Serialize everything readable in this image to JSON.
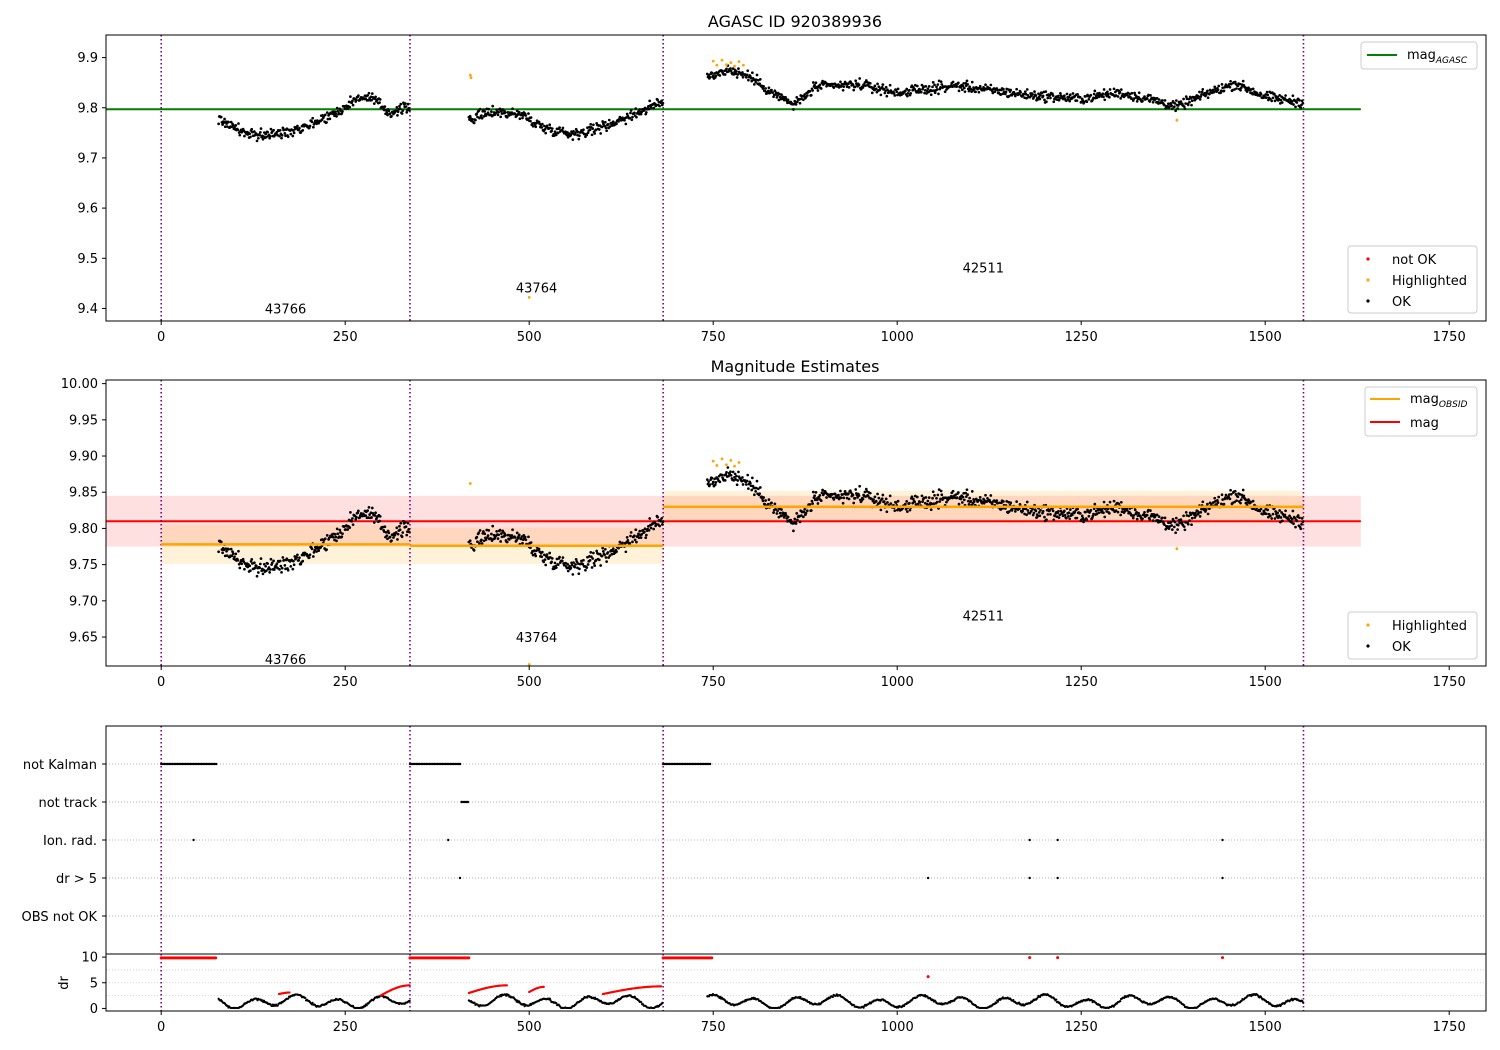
{
  "chart_data": [
    {
      "id": "agasc",
      "type": "scatter",
      "title": "AGASC ID 920389936",
      "xlim": [
        -75,
        1800
      ],
      "ylim": [
        9.375,
        9.945
      ],
      "xticks": [
        0,
        250,
        500,
        750,
        1000,
        1250,
        1500,
        1750
      ],
      "yticks": [
        9.4,
        9.5,
        9.6,
        9.7,
        9.8,
        9.9
      ],
      "ytick_decimals": 1,
      "obs_boundaries": [
        0,
        338,
        682,
        1552
      ],
      "obs_labels": [
        {
          "text": "43766",
          "x": 169,
          "y": 9.4
        },
        {
          "text": "43764",
          "x": 510,
          "y": 9.442
        },
        {
          "text": "42511",
          "x": 1117,
          "y": 9.482
        }
      ],
      "hline": {
        "y": 9.797,
        "x": [
          -75,
          1630
        ],
        "color": "#008000",
        "name": "mag"
      },
      "hline_sub": "AGASC",
      "segments": [
        {
          "x0": 78,
          "x1": 338,
          "anchors": [
            [
              78,
              9.778
            ],
            [
              120,
              9.745
            ],
            [
              160,
              9.748
            ],
            [
              200,
              9.766
            ],
            [
              240,
              9.792
            ],
            [
              270,
              9.822
            ],
            [
              290,
              9.815
            ],
            [
              310,
              9.79
            ],
            [
              338,
              9.802
            ]
          ],
          "noise": 0.012
        },
        {
          "x0": 418,
          "x1": 682,
          "anchors": [
            [
              418,
              9.776
            ],
            [
              450,
              9.793
            ],
            [
              490,
              9.786
            ],
            [
              520,
              9.76
            ],
            [
              560,
              9.748
            ],
            [
              600,
              9.762
            ],
            [
              640,
              9.786
            ],
            [
              682,
              9.812
            ]
          ],
          "noise": 0.012
        },
        {
          "x0": 742,
          "x1": 1552,
          "anchors": [
            [
              742,
              9.862
            ],
            [
              770,
              9.876
            ],
            [
              800,
              9.862
            ],
            [
              830,
              9.83
            ],
            [
              860,
              9.806
            ],
            [
              890,
              9.842
            ],
            [
              950,
              9.846
            ],
            [
              1000,
              9.83
            ],
            [
              1080,
              9.844
            ],
            [
              1180,
              9.825
            ],
            [
              1250,
              9.818
            ],
            [
              1300,
              9.83
            ],
            [
              1350,
              9.815
            ],
            [
              1380,
              9.802
            ],
            [
              1420,
              9.828
            ],
            [
              1460,
              9.848
            ],
            [
              1500,
              9.822
            ],
            [
              1552,
              9.81
            ]
          ],
          "noise": 0.011
        }
      ],
      "highlighted": [
        [
          420,
          9.865
        ],
        [
          421,
          9.86
        ],
        [
          500,
          9.422
        ],
        [
          750,
          9.893
        ],
        [
          755,
          9.885
        ],
        [
          762,
          9.895
        ],
        [
          768,
          9.886
        ],
        [
          774,
          9.89
        ],
        [
          779,
          9.883
        ],
        [
          785,
          9.892
        ],
        [
          791,
          9.885
        ],
        [
          1380,
          9.775
        ]
      ],
      "legend_line": [
        {
          "label": "mag",
          "sub": "AGASC",
          "color": "#008000"
        }
      ],
      "legend_markers": [
        {
          "label": "not OK",
          "color": "#ff0000"
        },
        {
          "label": "Highlighted",
          "color": "#ffa500"
        },
        {
          "label": "OK",
          "color": "#000000"
        }
      ]
    },
    {
      "id": "estimates",
      "type": "scatter",
      "title": "Magnitude Estimates",
      "xlim": [
        -75,
        1800
      ],
      "ylim": [
        9.61,
        10.005
      ],
      "xticks": [
        0,
        250,
        500,
        750,
        1000,
        1250,
        1500,
        1750
      ],
      "yticks": [
        9.65,
        9.7,
        9.75,
        9.8,
        9.85,
        9.9,
        9.95,
        10.0
      ],
      "ytick_decimals": 2,
      "obs_boundaries": [
        0,
        338,
        682,
        1552
      ],
      "obs_labels": [
        {
          "text": "43766",
          "x": 169,
          "y": 9.62
        },
        {
          "text": "43764",
          "x": 510,
          "y": 9.65
        },
        {
          "text": "42511",
          "x": 1117,
          "y": 9.68
        }
      ],
      "red_band": {
        "x": [
          -75,
          1630
        ],
        "center": 9.81,
        "low": 9.775,
        "high": 9.845
      },
      "obsid_bands": [
        {
          "x": [
            0,
            338
          ],
          "mag": 9.778,
          "low": 9.751,
          "high": 9.805
        },
        {
          "x": [
            338,
            682
          ],
          "mag": 9.776,
          "low": 9.751,
          "high": 9.801
        },
        {
          "x": [
            682,
            1552
          ],
          "mag": 9.83,
          "low": 9.808,
          "high": 9.852
        }
      ],
      "highlighted": [
        [
          420,
          9.862
        ],
        [
          500,
          9.612
        ],
        [
          750,
          9.893
        ],
        [
          755,
          9.887
        ],
        [
          762,
          9.896
        ],
        [
          768,
          9.888
        ],
        [
          774,
          9.894
        ],
        [
          779,
          9.886
        ],
        [
          785,
          9.891
        ],
        [
          1380,
          9.772
        ]
      ],
      "legend_line": [
        {
          "label": "mag",
          "sub": "OBSID",
          "color": "#ffa500"
        },
        {
          "label": "mag",
          "sub": "",
          "color": "#ff0000"
        }
      ],
      "legend_markers": [
        {
          "label": "Highlighted",
          "color": "#ffa500"
        },
        {
          "label": "OK",
          "color": "#000000"
        }
      ]
    },
    {
      "id": "flags",
      "type": "scatter",
      "xlim": [
        -75,
        1800
      ],
      "xticks": [
        0,
        250,
        500,
        750,
        1000,
        1250,
        1500,
        1750
      ],
      "obs_boundaries": [
        0,
        338,
        682,
        1552
      ],
      "flag_rows": [
        {
          "label": "not Kalman",
          "runs": [
            [
              0,
              75
            ],
            [
              338,
              408
            ],
            [
              682,
              748
            ]
          ],
          "points": []
        },
        {
          "label": "not track",
          "runs": [
            [
              408,
              418
            ]
          ],
          "points": []
        },
        {
          "label": "Ion. rad.",
          "runs": [],
          "points": [
            44,
            390,
            1180,
            1218,
            1442
          ]
        },
        {
          "label": "dr > 5",
          "runs": [],
          "points": [
            406,
            1042,
            1180,
            1218,
            1442
          ]
        },
        {
          "label": "OBS not OK",
          "runs": [],
          "points": []
        }
      ]
    },
    {
      "id": "dr",
      "type": "scatter",
      "ylabel": "dr",
      "xlim": [
        -75,
        1800
      ],
      "ylim": [
        -0.5,
        10.6
      ],
      "xticks": [
        0,
        250,
        500,
        750,
        1000,
        1250,
        1500,
        1750
      ],
      "yticks": [
        0,
        5,
        10
      ],
      "ytick_decimals": 0,
      "obs_boundaries": [
        0,
        338,
        682,
        1552
      ],
      "red_runs_at_10": [
        [
          0,
          75
        ],
        [
          338,
          418
        ],
        [
          682,
          748
        ]
      ],
      "red_points": [
        [
          1042,
          6.2
        ],
        [
          1180,
          9.9
        ],
        [
          1218,
          9.9
        ],
        [
          1442,
          9.9
        ]
      ],
      "red_arcs": [
        {
          "x": [
            160,
            175
          ],
          "base": 2.8,
          "amp": 0.3
        },
        {
          "x": [
            298,
            338
          ],
          "base": 2.5,
          "amp": 2.0
        },
        {
          "x": [
            418,
            470
          ],
          "base": 3.0,
          "amp": 1.5
        },
        {
          "x": [
            500,
            520
          ],
          "base": 3.2,
          "amp": 1.0
        },
        {
          "x": [
            600,
            680
          ],
          "base": 2.8,
          "amp": 1.5
        }
      ]
    }
  ]
}
